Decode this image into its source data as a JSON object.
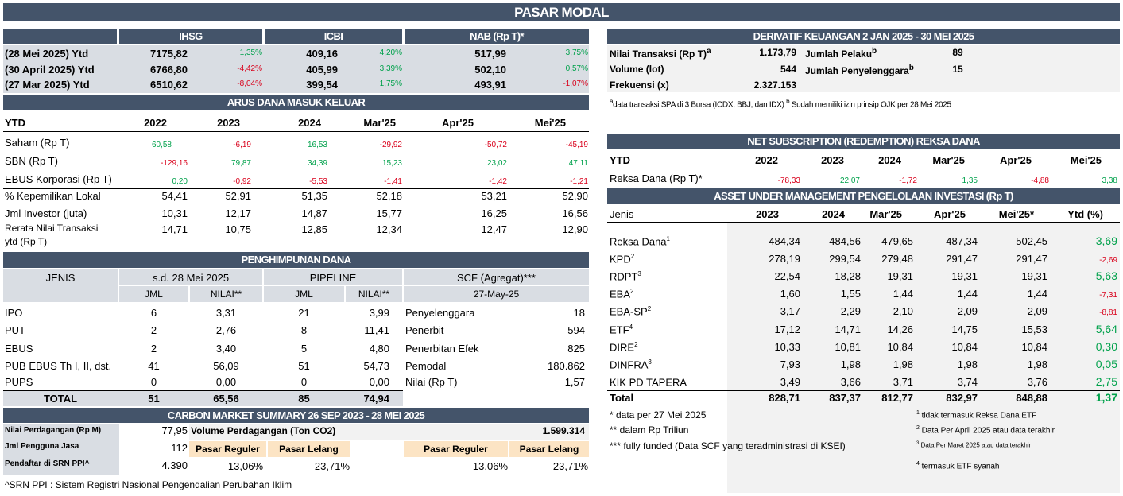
{
  "title": "PASAR MODAL",
  "idx": {
    "headers": [
      "IHSG",
      "ICBI",
      "NAB (Rp T)*"
    ],
    "rows": [
      {
        "label": "(28 Mei 2025) Ytd",
        "v1": "7175,82",
        "p1": "1,35%",
        "v2": "409,16",
        "p2": "4,20%",
        "v3": "517,99",
        "p3": "3,75%"
      },
      {
        "label": "(30 April 2025) Ytd",
        "v1": "6766,80",
        "p1": "-4,42%",
        "v2": "405,99",
        "p2": "3,39%",
        "v3": "502,10",
        "p3": "0,57%"
      },
      {
        "label": "(27 Mar 2025) Ytd",
        "v1": "6510,62",
        "p1": "-8,04%",
        "v2": "399,54",
        "p2": "1,75%",
        "v3": "493,91",
        "p3": "-1,07%"
      }
    ]
  },
  "arus": {
    "title": "ARUS DANA MASUK KELUAR",
    "cols": [
      "YTD",
      "2022",
      "2023",
      "2024",
      "Mar'25",
      "Apr'25",
      "Mei'25"
    ],
    "rows": [
      {
        "label": "Saham (Rp T)",
        "v": [
          "60,58",
          "-6,19",
          "16,53",
          "-29,92",
          "-50,72",
          "-45,19"
        ]
      },
      {
        "label": "SBN (Rp T)",
        "v": [
          "-129,16",
          "79,87",
          "34,39",
          "15,23",
          "23,02",
          "47,11"
        ]
      },
      {
        "label": "EBUS Korporasi (Rp T)",
        "v": [
          "0,20",
          "-0,92",
          "-5,53",
          "-1,41",
          "-1,42",
          "-1,21"
        ]
      }
    ],
    "rows2": [
      {
        "label": "% Kepemilikan Lokal",
        "v": [
          "54,41",
          "52,91",
          "51,35",
          "52,18",
          "53,21",
          "52,90"
        ]
      },
      {
        "label": "Jml Investor (juta)",
        "v": [
          "10,31",
          "12,17",
          "14,87",
          "15,77",
          "16,25",
          "16,56"
        ]
      },
      {
        "label": "Rerata Nilai Transaksi",
        "label2": "ytd (Rp T)",
        "v": [
          "14,71",
          "10,75",
          "12,85",
          "12,34",
          "12,47",
          "12,90"
        ]
      }
    ]
  },
  "hdana": {
    "title": "PENGHIMPUNAN DANA",
    "h_jenis": "JENIS",
    "h_sd": "s.d. 28 Mei 2025",
    "h_pipe": "PIPELINE",
    "h_scf": "SCF (Agregat)***",
    "h_jml": "JML",
    "h_nilai": "NILAI**",
    "h_jml2": "JML",
    "h_nilai2": "NILAI**",
    "h_date": "27-May-25",
    "rows": [
      {
        "j": "IPO",
        "a": "6",
        "b": "3,31",
        "c": "21",
        "d": "3,99",
        "s": "Penyelenggara",
        "sv": "18"
      },
      {
        "j": "PUT",
        "a": "2",
        "b": "2,76",
        "c": "8",
        "d": "11,41",
        "s": "Penerbit",
        "sv": "594"
      },
      {
        "j": "EBUS",
        "a": "2",
        "b": "3,40",
        "c": "5",
        "d": "4,80",
        "s": "Penerbitan Efek",
        "sv": "825"
      },
      {
        "j": "PUB EBUS Th I, II, dst.",
        "a": "41",
        "b": "56,09",
        "c": "51",
        "d": "54,73",
        "s": "Pemodal",
        "sv": "180.862"
      },
      {
        "j": "PUPS",
        "a": "0",
        "b": "0,00",
        "c": "0",
        "d": "0,00",
        "s": "Nilai (Rp T)",
        "sv": "1,57"
      }
    ],
    "total": {
      "j": "TOTAL",
      "a": "51",
      "b": "65,56",
      "c": "85",
      "d": "74,94"
    }
  },
  "carbon": {
    "title": "CARBON MARKET SUMMARY 26 SEP 2023 - 28 MEI 2025",
    "l1": "Nilai Perdagangan (Rp M)",
    "v1": "77,95",
    "l2": "Jml Pengguna Jasa",
    "v2": "112",
    "l3": "Pendaftar di SRN PPI^",
    "v3": "4.390",
    "vol_label": "Volume Perdagangan (Ton CO2)",
    "vol_value": "1.599.314",
    "pr": "Pasar Reguler",
    "pl": "Pasar Lelang",
    "pr_v": "13,06%",
    "pl_v": "23,71%",
    "pr_v2": "13,06%",
    "pl_v2": "23,71%",
    "note": "^SRN PPI : Sistem Registri Nasional Pengendalian Perubahan Iklim"
  },
  "deriv": {
    "title": "DERIVATIF KEUANGAN 2 JAN 2025 - 30 MEI 2025",
    "l1": "Nilai Transaksi (Rp T)",
    "s1": "a",
    "v1": "1.173,79",
    "l2": "Jumlah Pelaku",
    "s2": "b",
    "v2": "89",
    "l3": "Volume (lot)",
    "v3": "544",
    "l4": "Jumlah Penyelenggara",
    "s4": "b",
    "v4": "15",
    "l5": "Frekuensi (x)",
    "v5": "2.327.153",
    "fn_a": "a",
    "fn1": "data transaksi SPA di 3 Bursa (ICDX, BBJ, dan IDX) ",
    "fn_b": "b",
    "fn2": " Sudah memiliki izin prinsip OJK per 28 Mei 2025"
  },
  "netsub": {
    "title": "NET SUBSCRIPTION (REDEMPTION) REKSA DANA",
    "cols": [
      "YTD",
      "2022",
      "2023",
      "2024",
      "Mar'25",
      "Apr'25",
      "Mei'25"
    ],
    "label": "Reksa Dana (Rp T)*",
    "v": [
      "-78,33",
      "22,07",
      "-1,72",
      "1,35",
      "-4,88",
      "3,38"
    ]
  },
  "aum": {
    "title": "ASSET UNDER MANAGEMENT PENGELOLAAN INVESTASI (Rp T)",
    "cols": [
      "Jenis",
      "2023",
      "2024",
      "Mar'25",
      "Apr'25",
      "Mei'25*",
      "Ytd (%)"
    ],
    "rows": [
      {
        "j": "Reksa Dana",
        "s": "1",
        "v": [
          "484,34",
          "484,56",
          "479,65",
          "487,34",
          "502,45"
        ],
        "y": "3,69",
        "neg": false
      },
      {
        "j": "KPD",
        "s": "2",
        "v": [
          "278,19",
          "299,54",
          "279,48",
          "291,47",
          "291,47"
        ],
        "y": "-2,69",
        "neg": true
      },
      {
        "j": "RDPT",
        "s": "3",
        "v": [
          "22,54",
          "18,28",
          "19,31",
          "19,31",
          "19,31"
        ],
        "y": "5,63",
        "neg": false
      },
      {
        "j": "EBA",
        "s": "2",
        "v": [
          "1,60",
          "1,55",
          "1,44",
          "1,44",
          "1,44"
        ],
        "y": "-7,31",
        "neg": true
      },
      {
        "j": "EBA-SP",
        "s": "2",
        "v": [
          "3,17",
          "2,29",
          "2,10",
          "2,09",
          "2,09"
        ],
        "y": "-8,81",
        "neg": true
      },
      {
        "j": "ETF",
        "s": "4",
        "v": [
          "17,12",
          "14,71",
          "14,26",
          "14,75",
          "15,53"
        ],
        "y": "5,64",
        "neg": false
      },
      {
        "j": "DIRE",
        "s": "2",
        "v": [
          "10,33",
          "10,81",
          "10,84",
          "10,84",
          "10,84"
        ],
        "y": "0,30",
        "neg": false
      },
      {
        "j": "DINFRA",
        "s": "3",
        "v": [
          "7,93",
          "1,98",
          "1,98",
          "1,98",
          "1,98"
        ],
        "y": "0,05",
        "neg": false
      },
      {
        "j": "KIK PD TAPERA",
        "s": "",
        "v": [
          "3,49",
          "3,66",
          "3,71",
          "3,74",
          "3,76"
        ],
        "y": "2,75",
        "neg": false
      }
    ],
    "total": {
      "j": "Total",
      "v": [
        "828,71",
        "837,37",
        "812,77",
        "832,97",
        "848,88"
      ],
      "y": "1,37"
    },
    "notes_l": [
      "* data per 27 Mei 2025",
      "** dalam Rp Triliun",
      "*** fully funded (Data SCF yang teradministrasi di KSEI)"
    ],
    "notes_r": [
      {
        "s": "1",
        "t": " tidak termasuk Reksa Dana ETF"
      },
      {
        "s": "2",
        "t": " Data Per April 2025 atau data terakhir"
      },
      {
        "s": "3",
        "t": " Data Per Maret 2025 atau data terakhir"
      },
      {
        "s": "4",
        "t": " termasuk ETF syariah"
      }
    ]
  }
}
